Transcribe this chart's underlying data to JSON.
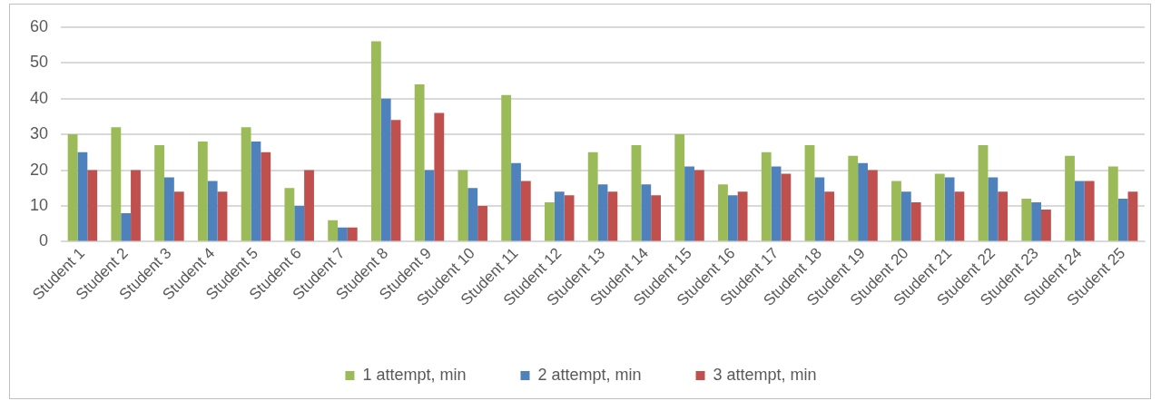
{
  "chart_data": {
    "type": "bar",
    "categories": [
      "Student 1",
      "Student 2",
      "Student 3",
      "Student 4",
      "Student 5",
      "Student 6",
      "Student 7",
      "Student 8",
      "Student 9",
      "Student 10",
      "Student 11",
      "Student 12",
      "Student 13",
      "Student 14",
      "Student 15",
      "Student 16",
      "Student 17",
      "Student 18",
      "Student 19",
      "Student 20",
      "Student 21",
      "Student 22",
      "Student 23",
      "Student 24",
      "Student 25"
    ],
    "series": [
      {
        "name": "1 attempt, min",
        "color": "#9bbb59",
        "values": [
          30,
          32,
          27,
          28,
          32,
          15,
          6,
          56,
          44,
          20,
          41,
          11,
          25,
          27,
          30,
          16,
          25,
          27,
          24,
          17,
          19,
          27,
          12,
          24,
          21
        ]
      },
      {
        "name": "2 attempt, min",
        "color": "#4f81bd",
        "values": [
          25,
          8,
          18,
          17,
          28,
          10,
          4,
          40,
          20,
          15,
          22,
          14,
          16,
          16,
          21,
          13,
          21,
          18,
          22,
          14,
          18,
          18,
          11,
          17,
          12
        ]
      },
      {
        "name": "3 attempt, min",
        "color": "#c0504d",
        "values": [
          20,
          20,
          14,
          14,
          25,
          20,
          4,
          34,
          36,
          10,
          17,
          13,
          14,
          13,
          20,
          14,
          19,
          14,
          20,
          11,
          14,
          14,
          9,
          17,
          14
        ]
      }
    ],
    "ylim": [
      0,
      60
    ],
    "yticks": [
      0,
      10,
      20,
      30,
      40,
      50,
      60
    ],
    "grid": "y",
    "legend": "bottom"
  }
}
